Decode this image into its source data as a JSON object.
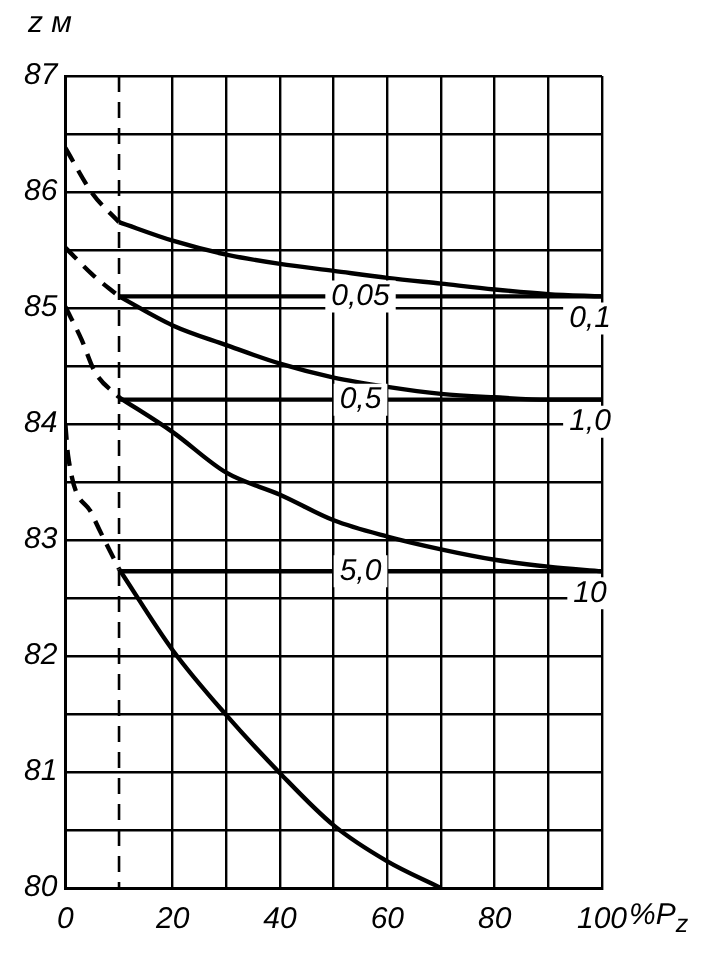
{
  "chart_data": {
    "type": "line",
    "xlabel": "%P$_{z}$",
    "ylabel": "z м",
    "xlim": [
      0,
      100
    ],
    "ylim": [
      80,
      87
    ],
    "xticks": [
      0,
      {
        "value": 10,
        "label": null
      },
      20,
      {
        "value": 30,
        "label": null
      },
      40,
      {
        "value": 50,
        "label": null
      },
      60,
      {
        "value": 70,
        "label": null
      },
      80,
      {
        "value": 90,
        "label": null
      },
      100
    ],
    "yticks": [
      80,
      {
        "value": 80.5,
        "label": null
      },
      81,
      {
        "value": 81.5,
        "label": null
      },
      82,
      {
        "value": 82.5,
        "label": null
      },
      83,
      {
        "value": 83.5,
        "label": null
      },
      84,
      {
        "value": 84.5,
        "label": null
      },
      85,
      {
        "value": 85.5,
        "label": null
      },
      86,
      {
        "value": 86.5,
        "label": null
      },
      87
    ],
    "grid": true,
    "legend": false,
    "marker": "none",
    "line_style": "solid",
    "ref_lines": [
      {
        "axis": "x",
        "value": 10,
        "label": null,
        "color": "#000000",
        "line_style": "dashed"
      }
    ],
    "series": [
      {
        "name": "0,1",
        "color": "#000000",
        "x": [
          10,
          20,
          30,
          40,
          50,
          60,
          70,
          80,
          90,
          100
        ],
        "values": [
          85.74,
          85.58,
          85.46,
          85.38,
          85.32,
          85.26,
          85.21,
          85.16,
          85.12,
          85.1
        ]
      },
      {
        "name": "0,05",
        "color": "#000000",
        "x": [
          10,
          100
        ],
        "values": [
          85.1,
          85.1
        ]
      },
      {
        "name": "1,0",
        "color": "#000000",
        "x": [
          10,
          20,
          30,
          40,
          50,
          60,
          70,
          80,
          90,
          100
        ],
        "values": [
          85.1,
          84.85,
          84.68,
          84.52,
          84.4,
          84.32,
          84.26,
          84.23,
          84.21,
          84.21
        ]
      },
      {
        "name": "0,5",
        "color": "#000000",
        "x": [
          10,
          100
        ],
        "values": [
          84.21,
          84.21
        ]
      },
      {
        "name": "10",
        "color": "#000000",
        "x": [
          10,
          20,
          30,
          40,
          50,
          60,
          70,
          80,
          90,
          100
        ],
        "values": [
          84.23,
          83.93,
          83.58,
          83.39,
          83.17,
          83.03,
          82.92,
          82.83,
          82.77,
          82.73
        ]
      },
      {
        "name": "5,0",
        "color": "#000000",
        "x": [
          10,
          100
        ],
        "values": [
          82.73,
          82.73
        ]
      },
      {
        "color": "#000000",
        "x": [
          10,
          20,
          30,
          40,
          50,
          60,
          70
        ],
        "values": [
          82.75,
          82.05,
          81.49,
          80.99,
          80.54,
          80.23,
          80.0
        ]
      },
      {
        "color": "#000000",
        "line_style": "dashed",
        "x": [
          0,
          5,
          10
        ],
        "values": [
          86.38,
          85.99,
          85.74
        ]
      },
      {
        "color": "#000000",
        "line_style": "dashed",
        "x": [
          0,
          5,
          10
        ],
        "values": [
          85.52,
          85.29,
          85.1
        ]
      },
      {
        "color": "#000000",
        "line_style": "dashed",
        "x": [
          0,
          3,
          5.5,
          10
        ],
        "values": [
          85.01,
          84.73,
          84.45,
          84.23
        ]
      },
      {
        "color": "#000000",
        "line_style": "dashed",
        "x": [
          0,
          0.5,
          5,
          10
        ],
        "values": [
          84.0,
          83.73,
          83.22,
          82.75
        ]
      }
    ]
  }
}
